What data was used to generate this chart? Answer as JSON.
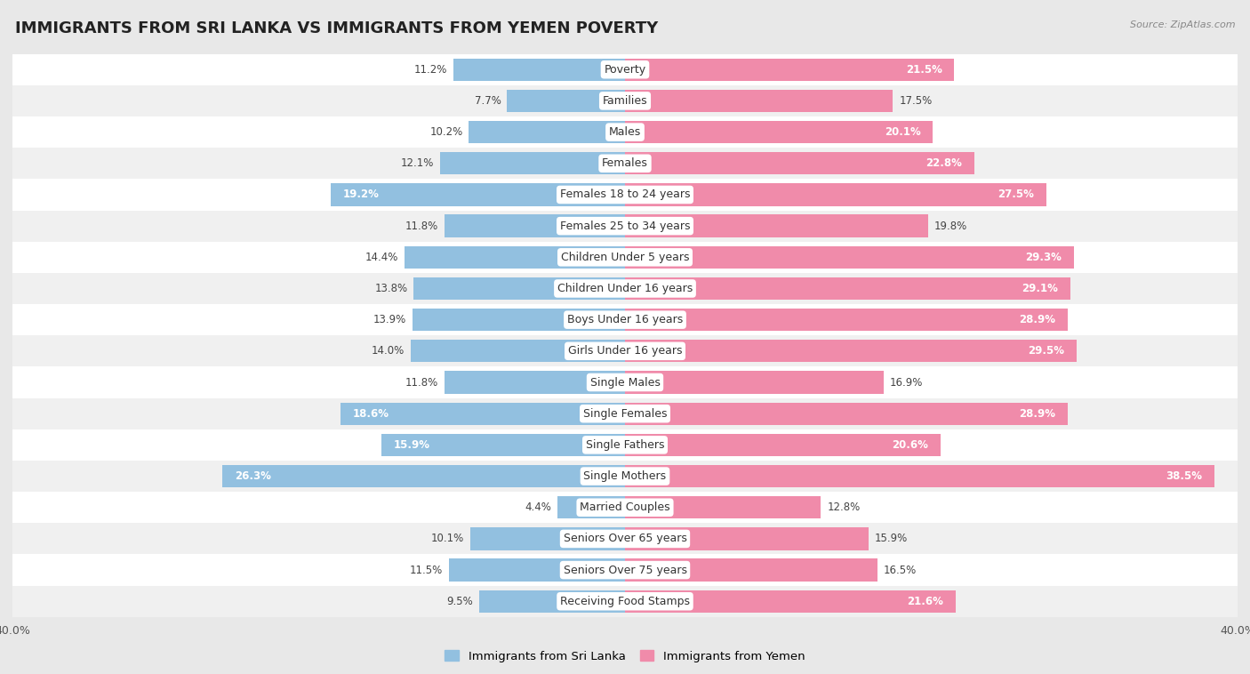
{
  "title": "IMMIGRANTS FROM SRI LANKA VS IMMIGRANTS FROM YEMEN POVERTY",
  "source": "Source: ZipAtlas.com",
  "categories": [
    "Poverty",
    "Families",
    "Males",
    "Females",
    "Females 18 to 24 years",
    "Females 25 to 34 years",
    "Children Under 5 years",
    "Children Under 16 years",
    "Boys Under 16 years",
    "Girls Under 16 years",
    "Single Males",
    "Single Females",
    "Single Fathers",
    "Single Mothers",
    "Married Couples",
    "Seniors Over 65 years",
    "Seniors Over 75 years",
    "Receiving Food Stamps"
  ],
  "sri_lanka": [
    11.2,
    7.7,
    10.2,
    12.1,
    19.2,
    11.8,
    14.4,
    13.8,
    13.9,
    14.0,
    11.8,
    18.6,
    15.9,
    26.3,
    4.4,
    10.1,
    11.5,
    9.5
  ],
  "yemen": [
    21.5,
    17.5,
    20.1,
    22.8,
    27.5,
    19.8,
    29.3,
    29.1,
    28.9,
    29.5,
    16.9,
    28.9,
    20.6,
    38.5,
    12.8,
    15.9,
    16.5,
    21.6
  ],
  "sri_lanka_color": "#92C0E0",
  "yemen_color": "#F08BAA",
  "sri_lanka_label": "Immigrants from Sri Lanka",
  "yemen_label": "Immigrants from Yemen",
  "x_max": 40.0,
  "bg_color": "#e8e8e8",
  "row_color_even": "#ffffff",
  "row_color_odd": "#f0f0f0",
  "title_fontsize": 13,
  "label_fontsize": 9,
  "value_fontsize": 8.5
}
